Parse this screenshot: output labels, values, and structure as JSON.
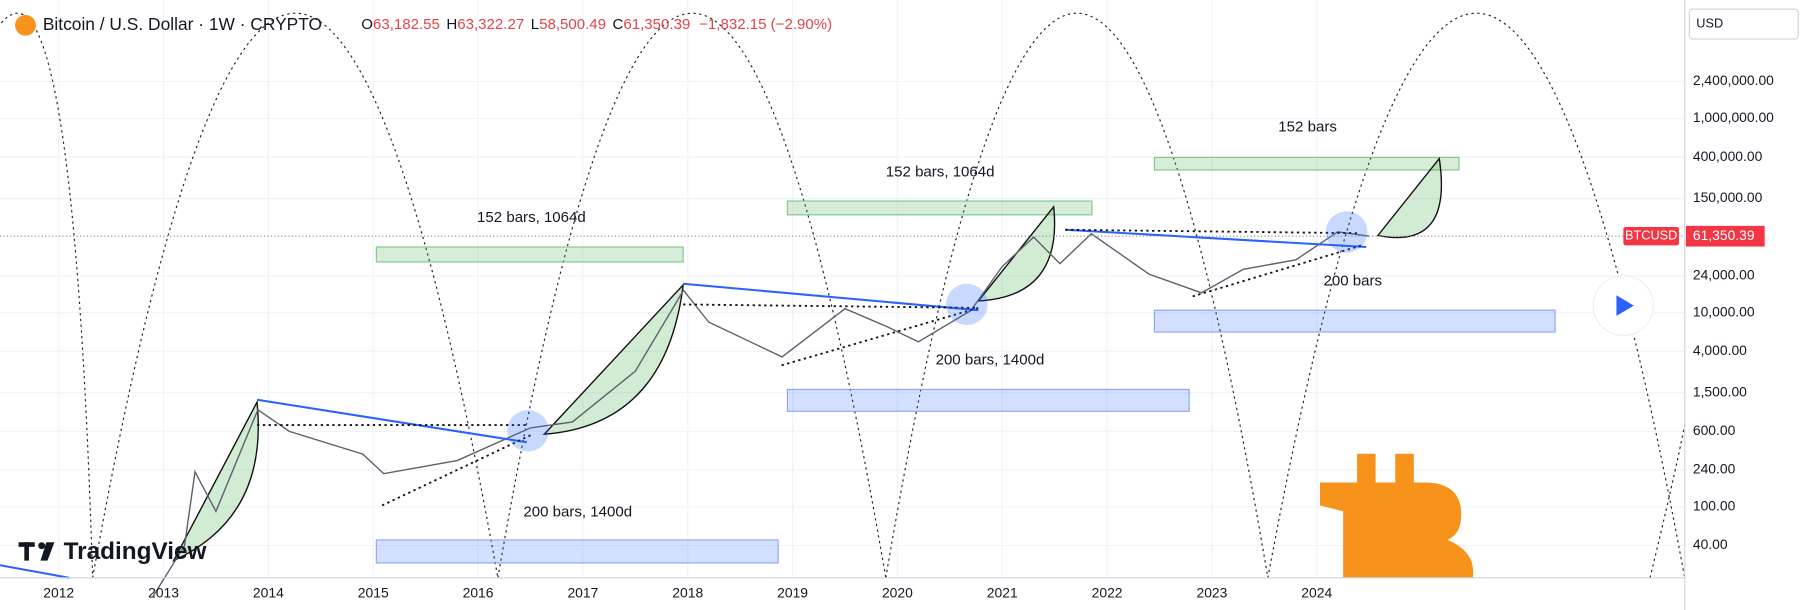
{
  "header": {
    "title": "Bitcoin / U.S. Dollar · 1W · CRYPTO",
    "ohlc": [
      {
        "label": "O",
        "value": "63,182.55"
      },
      {
        "label": "H",
        "value": "63,322.27"
      },
      {
        "label": "L",
        "value": "58,500.49"
      },
      {
        "label": "C",
        "value": "61,350.39"
      }
    ],
    "change": "−1,832.15 (−2.90%)"
  },
  "currency": "USD",
  "brand": "TradingView",
  "chart_data": {
    "type": "line",
    "x": [
      2012.9,
      2013.2,
      2013.3,
      2013.5,
      2013.9,
      2014.2,
      2014.9,
      2015.1,
      2015.8,
      2016.5,
      2016.9,
      2017.5,
      2017.96,
      2018.2,
      2018.9,
      2019.5,
      2019.9,
      2020.2,
      2020.7,
      2021.0,
      2021.3,
      2021.55,
      2021.85,
      2022.4,
      2022.9,
      2023.3,
      2023.8,
      2024.2,
      2024.5
    ],
    "series": [
      {
        "name": "BTCUSD",
        "color": "#5d606b",
        "values": [
          12,
          40,
          230,
          90,
          1000,
          600,
          350,
          220,
          300,
          650,
          750,
          2500,
          17000,
          8000,
          3500,
          11000,
          7200,
          5000,
          10500,
          30000,
          60000,
          32000,
          65000,
          25000,
          16000,
          28000,
          35000,
          68000,
          61350.39
        ]
      }
    ],
    "log_y": true,
    "xlim": [
      2011.44,
      2027.51
    ],
    "ylim": [
      18.6,
      16600000
    ],
    "xticks": [
      2012,
      2013,
      2014,
      2015,
      2016,
      2017,
      2018,
      2019,
      2020,
      2021,
      2022,
      2023,
      2024
    ],
    "yticks": [
      {
        "value": 40,
        "label": "40.00"
      },
      {
        "value": 100,
        "label": "100.00"
      },
      {
        "value": 240,
        "label": "240.00"
      },
      {
        "value": 600,
        "label": "600.00"
      },
      {
        "value": 1500,
        "label": "1,500.00"
      },
      {
        "value": 4000,
        "label": "4,000.00"
      },
      {
        "value": 10000,
        "label": "10,000.00"
      },
      {
        "value": 24000,
        "label": "24,000.00"
      },
      {
        "value": 150000,
        "label": "150,000.00"
      },
      {
        "value": 400000,
        "label": "400,000.00"
      },
      {
        "value": 1000000,
        "label": "1,000,000.00"
      },
      {
        "value": 2400000,
        "label": "2,400,000.00"
      }
    ],
    "grid": true,
    "last_price": {
      "value": 61350.39,
      "label": "61,350.39"
    },
    "annotations": [
      "152 bars, 1064d",
      "152 bars, 1064d",
      "152 bars",
      "200 bars, 1400d",
      "200 bars, 1400d",
      "200 bars"
    ]
  }
}
